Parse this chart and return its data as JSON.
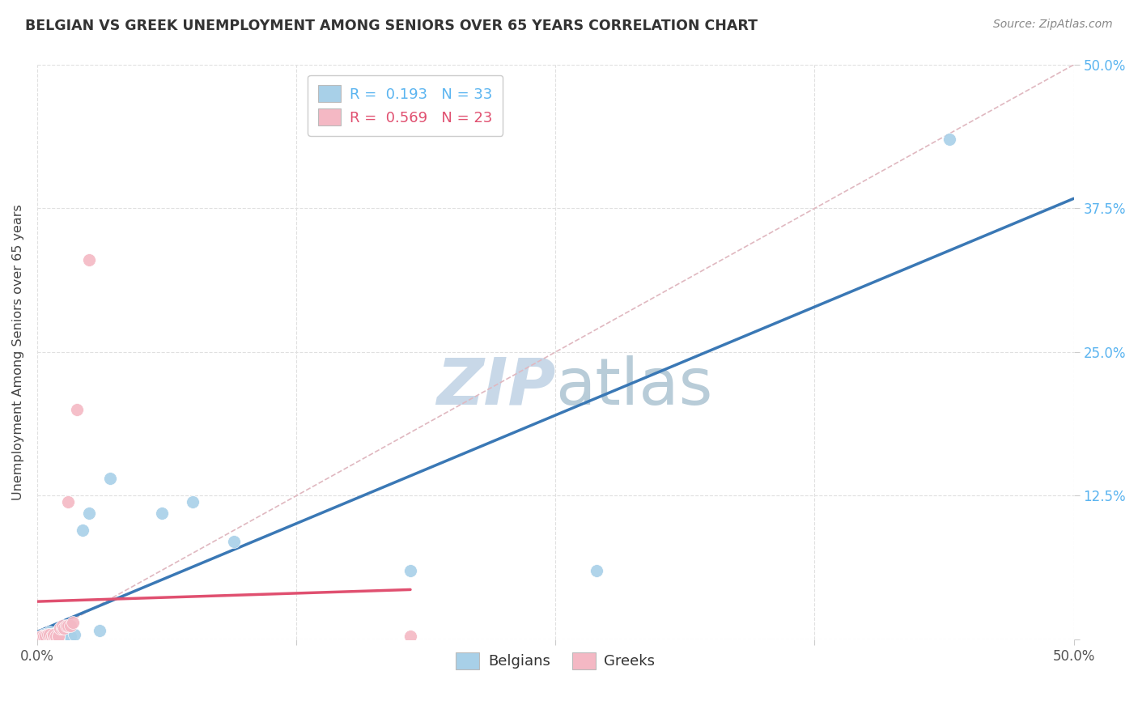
{
  "title": "BELGIAN VS GREEK UNEMPLOYMENT AMONG SENIORS OVER 65 YEARS CORRELATION CHART",
  "source": "Source: ZipAtlas.com",
  "ylabel": "Unemployment Among Seniors over 65 years",
  "xlim": [
    0.0,
    0.5
  ],
  "ylim": [
    0.0,
    0.5
  ],
  "xticks": [
    0.0,
    0.125,
    0.25,
    0.375,
    0.5
  ],
  "yticks": [
    0.0,
    0.125,
    0.25,
    0.375,
    0.5
  ],
  "belgian_x": [
    0.002,
    0.003,
    0.004,
    0.005,
    0.005,
    0.006,
    0.006,
    0.007,
    0.007,
    0.008,
    0.008,
    0.009,
    0.009,
    0.01,
    0.01,
    0.011,
    0.011,
    0.012,
    0.013,
    0.014,
    0.015,
    0.016,
    0.018,
    0.022,
    0.025,
    0.03,
    0.035,
    0.06,
    0.075,
    0.095,
    0.18,
    0.27,
    0.44
  ],
  "belgian_y": [
    0.003,
    0.004,
    0.003,
    0.005,
    0.003,
    0.006,
    0.004,
    0.003,
    0.004,
    0.004,
    0.003,
    0.003,
    0.004,
    0.003,
    0.003,
    0.003,
    0.003,
    0.003,
    0.003,
    0.003,
    0.003,
    0.003,
    0.004,
    0.095,
    0.11,
    0.008,
    0.14,
    0.11,
    0.12,
    0.085,
    0.06,
    0.06,
    0.435
  ],
  "greek_x": [
    0.002,
    0.003,
    0.004,
    0.005,
    0.006,
    0.007,
    0.008,
    0.008,
    0.009,
    0.01,
    0.01,
    0.011,
    0.012,
    0.012,
    0.013,
    0.014,
    0.015,
    0.015,
    0.016,
    0.017,
    0.019,
    0.025,
    0.18
  ],
  "greek_y": [
    0.003,
    0.003,
    0.003,
    0.004,
    0.004,
    0.003,
    0.003,
    0.004,
    0.003,
    0.003,
    0.003,
    0.01,
    0.01,
    0.012,
    0.01,
    0.012,
    0.12,
    0.012,
    0.012,
    0.015,
    0.2,
    0.33,
    0.003
  ],
  "belgian_R": 0.193,
  "belgian_N": 33,
  "greek_R": 0.569,
  "greek_N": 23,
  "belgian_color": "#a8d0e8",
  "greek_color": "#f4b8c4",
  "belgian_line_color": "#3a78b5",
  "greek_line_color": "#e05070",
  "diagonal_color": "#e0b8c0",
  "title_color": "#333333",
  "source_color": "#888888",
  "axis_label_color": "#444444",
  "right_tick_color": "#5ab4f0",
  "background_color": "#ffffff",
  "grid_color": "#e0e0e0",
  "watermark_zip_color": "#c8d8e8",
  "watermark_atlas_color": "#b8ccd8",
  "watermark_fontsize": 58
}
